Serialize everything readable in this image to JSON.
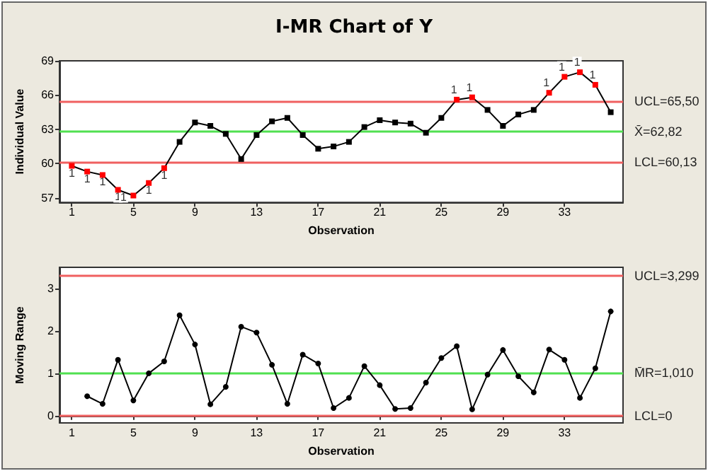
{
  "chart_data": [
    {
      "type": "line",
      "title": "I-MR Chart of Y",
      "xlabel": "Observation",
      "ylabel": "Individual Value",
      "xlim": [
        0.2,
        36.8
      ],
      "xticks": [
        1,
        5,
        9,
        13,
        17,
        21,
        25,
        29,
        33
      ],
      "ylim": [
        56.6,
        69
      ],
      "yticks": [
        57,
        60,
        63,
        66,
        69
      ],
      "grid": false,
      "marker": "square",
      "line_style": "solid",
      "annotations": [
        {
          "text": "1",
          "x": 1,
          "y": 59.8
        },
        {
          "text": "1",
          "x": 2,
          "y": 59.3
        },
        {
          "text": "1",
          "x": 3,
          "y": 59.0
        },
        {
          "text": "1",
          "x": 4,
          "y": 57.7
        },
        {
          "text": "1",
          "x": 5,
          "y": 57.2
        },
        {
          "text": "1",
          "x": 6,
          "y": 58.3
        },
        {
          "text": "1",
          "x": 7,
          "y": 59.6
        },
        {
          "text": "1",
          "x": 26,
          "y": 65.6
        },
        {
          "text": "1",
          "x": 27,
          "y": 65.8
        },
        {
          "text": "1",
          "x": 32,
          "y": 66.2
        },
        {
          "text": "1",
          "x": 33,
          "y": 67.6
        },
        {
          "text": "1",
          "x": 34,
          "y": 68.0
        },
        {
          "text": "1",
          "x": 35,
          "y": 66.9
        }
      ],
      "series": [
        {
          "color": "#000000",
          "x": [
            1,
            2,
            3,
            4,
            5,
            6,
            7,
            8,
            9,
            10,
            11,
            12,
            13,
            14,
            15,
            16,
            17,
            18,
            19,
            20,
            21,
            22,
            23,
            24,
            25,
            26,
            27,
            28,
            29,
            30,
            31,
            32,
            33,
            34,
            35,
            36
          ],
          "values": [
            59.8,
            59.3,
            59.0,
            57.7,
            57.2,
            58.3,
            59.6,
            61.9,
            63.6,
            63.3,
            62.6,
            60.4,
            62.5,
            63.7,
            64.0,
            62.5,
            61.3,
            61.5,
            61.9,
            63.2,
            63.8,
            63.6,
            63.5,
            62.7,
            64.0,
            65.6,
            65.8,
            64.7,
            63.3,
            64.3,
            64.7,
            66.2,
            67.6,
            68.0,
            66.9,
            64.5
          ],
          "colors": [
            "#ff0000",
            "#ff0000",
            "#ff0000",
            "#ff0000",
            "#ff0000",
            "#ff0000",
            "#ff0000",
            "#000000",
            "#000000",
            "#000000",
            "#000000",
            "#000000",
            "#000000",
            "#000000",
            "#000000",
            "#000000",
            "#000000",
            "#000000",
            "#000000",
            "#000000",
            "#000000",
            "#000000",
            "#000000",
            "#000000",
            "#000000",
            "#ff0000",
            "#ff0000",
            "#000000",
            "#000000",
            "#000000",
            "#000000",
            "#ff0000",
            "#ff0000",
            "#ff0000",
            "#ff0000",
            "#000000"
          ]
        }
      ],
      "ref_lines": [
        {
          "axis": "y",
          "value": 65.5,
          "label": "UCL=65,50",
          "color": "#f06060"
        },
        {
          "axis": "y",
          "value": 62.82,
          "label": "X̄=62,82",
          "color": "#50e050"
        },
        {
          "axis": "y",
          "value": 60.13,
          "label": "LCL=60,13",
          "color": "#f06060"
        }
      ]
    },
    {
      "type": "line",
      "xlabel": "Observation",
      "ylabel": "Moving Range",
      "xlim": [
        0.2,
        36.8
      ],
      "xticks": [
        1,
        5,
        9,
        13,
        17,
        21,
        25,
        29,
        33
      ],
      "ylim": [
        -0.17,
        3.5
      ],
      "yticks": [
        0,
        1,
        2,
        3
      ],
      "grid": false,
      "marker": "circle",
      "line_style": "solid",
      "series": [
        {
          "color": "#000000",
          "x": [
            2,
            3,
            4,
            5,
            6,
            7,
            8,
            9,
            10,
            11,
            12,
            13,
            14,
            15,
            16,
            17,
            18,
            19,
            20,
            21,
            22,
            23,
            24,
            25,
            26,
            27,
            28,
            29,
            30,
            31,
            32,
            33,
            34,
            35,
            36
          ],
          "values": [
            0.46,
            0.28,
            1.32,
            0.36,
            1.0,
            1.28,
            2.37,
            1.68,
            0.27,
            0.68,
            2.1,
            1.96,
            1.2,
            0.28,
            1.44,
            1.23,
            0.18,
            0.42,
            1.17,
            0.72,
            0.16,
            0.18,
            0.78,
            1.36,
            1.64,
            0.15,
            0.97,
            1.55,
            0.93,
            0.55,
            1.56,
            1.32,
            0.42,
            1.12,
            2.46
          ]
        }
      ],
      "ref_lines": [
        {
          "axis": "y",
          "value": 3.299,
          "label": "UCL=3,299",
          "color": "#f06060"
        },
        {
          "axis": "y",
          "value": 1.01,
          "label": "M̄R=1,010",
          "color": "#50e050"
        },
        {
          "axis": "y",
          "value": 0,
          "label": "LCL=0",
          "color": "#f06060"
        }
      ]
    }
  ]
}
